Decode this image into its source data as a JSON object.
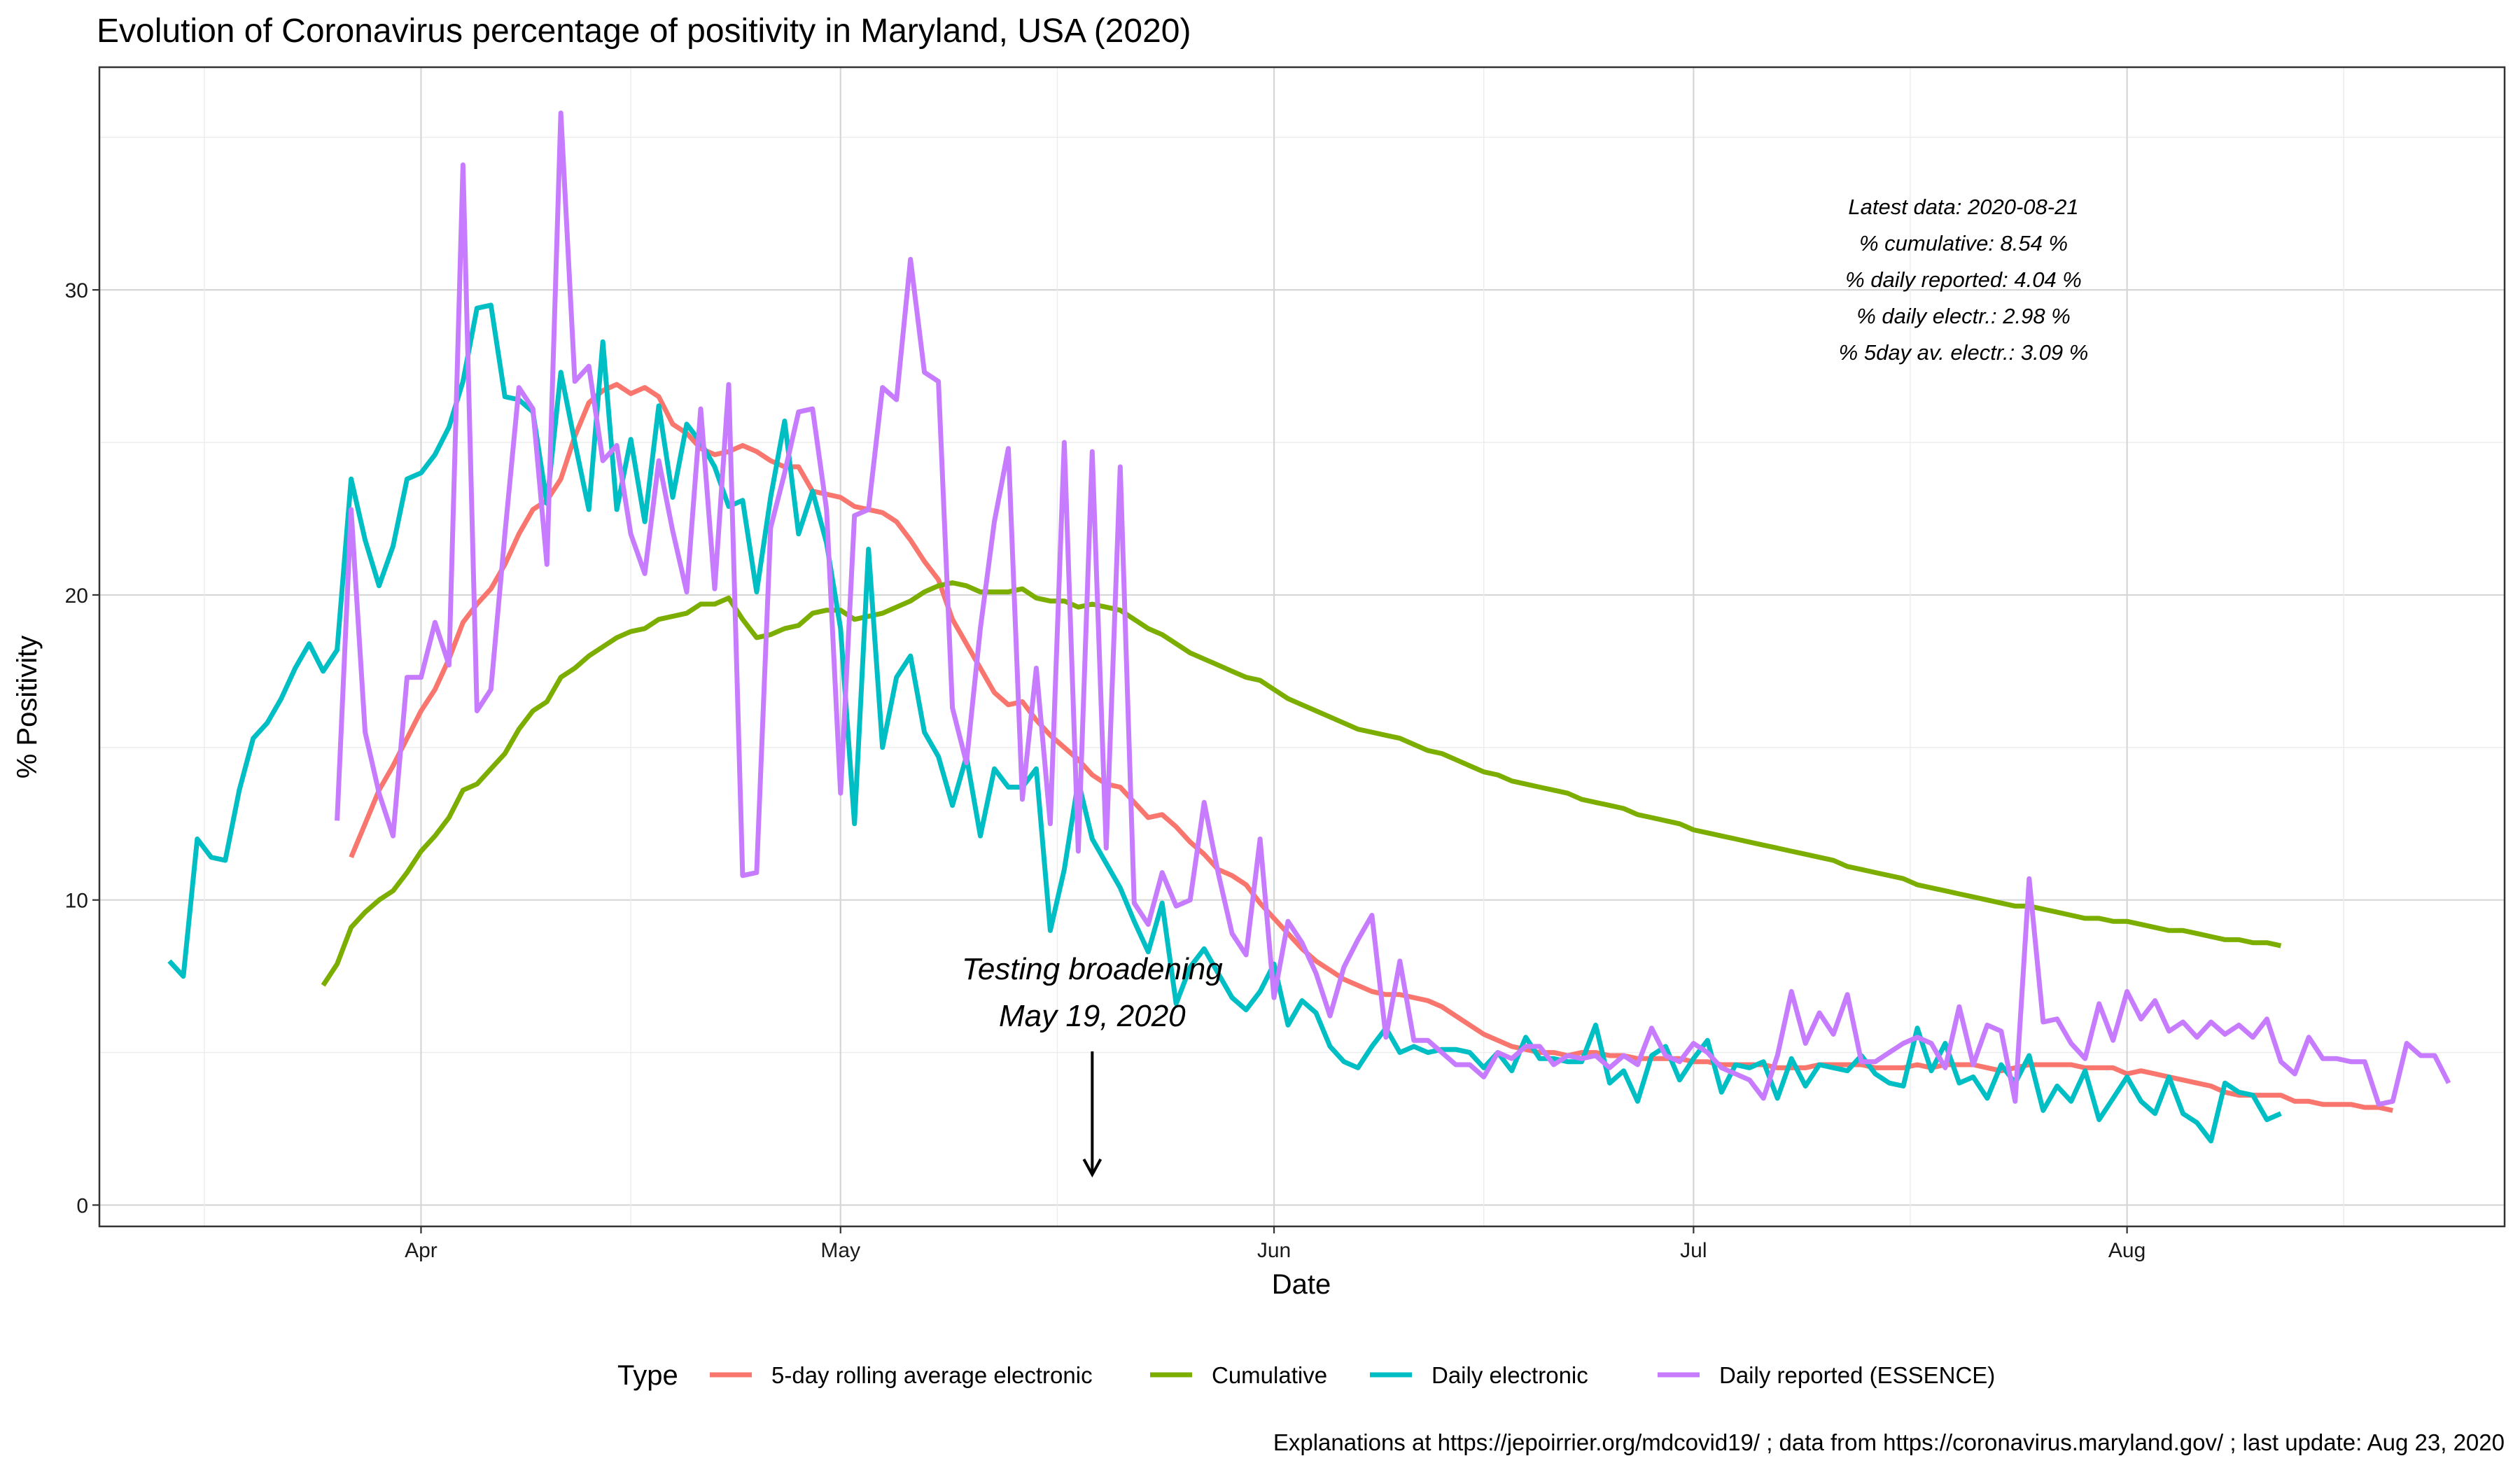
{
  "title": "Evolution of Coronavirus percentage of positivity in Maryland, USA (2020)",
  "caption": "Explanations at https://jepoirrier.org/mdcovid19/ ; data from https://coronavirus.maryland.gov/ ; last update: Aug 23, 2020",
  "latest_note": [
    "Latest data: 2020-08-21",
    "% cumulative: 8.54 %",
    "% daily reported: 4.04 %",
    "% daily electr.: 2.98 %",
    "% 5day av. electr.: 3.09 %"
  ],
  "annotation": {
    "lines": [
      "Testing broadening",
      "May 19, 2020"
    ],
    "date": "2020-05-19"
  },
  "chart_data": {
    "type": "line",
    "title": "Evolution of Coronavirus percentage of positivity in Maryland, USA (2020)",
    "xlabel": "Date",
    "ylabel": "% Positivity",
    "x_start_date": "2020-03-14",
    "x_end_date": "2020-08-21",
    "xlim": [
      "2020-03-09",
      "2020-08-28"
    ],
    "ylim": [
      -0.7,
      37.3
    ],
    "x_ticks": [
      {
        "date": "2020-04-01",
        "label": "Apr"
      },
      {
        "date": "2020-05-01",
        "label": "May"
      },
      {
        "date": "2020-06-01",
        "label": "Jun"
      },
      {
        "date": "2020-07-01",
        "label": "Jul"
      },
      {
        "date": "2020-08-01",
        "label": "Aug"
      }
    ],
    "y_ticks": [
      0,
      10,
      20,
      30
    ],
    "grid": true,
    "legend_position": "bottom",
    "legend_title": "Type",
    "series": [
      {
        "name": "5-day rolling average electronic",
        "color": "#F8766D",
        "start_date": "2020-03-27",
        "values": [
          11.4,
          12.5,
          13.6,
          14.4,
          15.3,
          16.2,
          16.9,
          17.9,
          19.1,
          19.7,
          20.2,
          21.0,
          22.0,
          22.8,
          23.1,
          23.8,
          25.2,
          26.3,
          26.7,
          26.9,
          26.6,
          26.8,
          26.5,
          25.6,
          25.3,
          24.8,
          24.6,
          24.7,
          24.9,
          24.7,
          24.4,
          24.2,
          24.2,
          23.4,
          23.3,
          23.2,
          22.9,
          22.8,
          22.7,
          22.4,
          21.8,
          21.1,
          20.5,
          19.2,
          18.4,
          17.6,
          16.8,
          16.4,
          16.5,
          15.9,
          15.4,
          15.0,
          14.6,
          14.1,
          13.8,
          13.7,
          13.2,
          12.7,
          12.8,
          12.4,
          11.9,
          11.5,
          11.0,
          10.8,
          10.5,
          9.9,
          9.4,
          8.9,
          8.4,
          8.0,
          7.7,
          7.4,
          7.2,
          7.0,
          6.9,
          6.9,
          6.8,
          6.7,
          6.5,
          6.2,
          5.9,
          5.6,
          5.4,
          5.2,
          5.1,
          5.0,
          5.0,
          4.9,
          5.0,
          5.0,
          4.9,
          4.9,
          4.8,
          4.8,
          4.8,
          4.8,
          4.7,
          4.7,
          4.6,
          4.6,
          4.6,
          4.6,
          4.5,
          4.5,
          4.5,
          4.6,
          4.6,
          4.6,
          4.6,
          4.5,
          4.5,
          4.5,
          4.6,
          4.5,
          4.6,
          4.6,
          4.6,
          4.5,
          4.4,
          4.5,
          4.6,
          4.6,
          4.6,
          4.6,
          4.5,
          4.5,
          4.5,
          4.3,
          4.4,
          4.3,
          4.2,
          4.1,
          4.0,
          3.9,
          3.7,
          3.6,
          3.6,
          3.6,
          3.6,
          3.4,
          3.4,
          3.3,
          3.3,
          3.3,
          3.2,
          3.2,
          3.1
        ]
      },
      {
        "name": "Cumulative",
        "color": "#7CAE00",
        "start_date": "2020-03-25",
        "values": [
          7.2,
          7.9,
          9.1,
          9.6,
          10.0,
          10.3,
          10.9,
          11.6,
          12.1,
          12.7,
          13.6,
          13.8,
          14.3,
          14.8,
          15.6,
          16.2,
          16.5,
          17.3,
          17.6,
          18.0,
          18.3,
          18.6,
          18.8,
          18.9,
          19.2,
          19.3,
          19.4,
          19.7,
          19.7,
          19.9,
          19.2,
          18.6,
          18.7,
          18.9,
          19.0,
          19.4,
          19.5,
          19.5,
          19.2,
          19.3,
          19.4,
          19.6,
          19.8,
          20.1,
          20.3,
          20.4,
          20.3,
          20.1,
          20.1,
          20.1,
          20.2,
          19.9,
          19.8,
          19.8,
          19.6,
          19.7,
          19.6,
          19.5,
          19.2,
          18.9,
          18.7,
          18.4,
          18.1,
          17.9,
          17.7,
          17.5,
          17.3,
          17.2,
          16.9,
          16.6,
          16.4,
          16.2,
          16.0,
          15.8,
          15.6,
          15.5,
          15.4,
          15.3,
          15.1,
          14.9,
          14.8,
          14.6,
          14.4,
          14.2,
          14.1,
          13.9,
          13.8,
          13.7,
          13.6,
          13.5,
          13.3,
          13.2,
          13.1,
          13.0,
          12.8,
          12.7,
          12.6,
          12.5,
          12.3,
          12.2,
          12.1,
          12.0,
          11.9,
          11.8,
          11.7,
          11.6,
          11.5,
          11.4,
          11.3,
          11.1,
          11.0,
          10.9,
          10.8,
          10.7,
          10.5,
          10.4,
          10.3,
          10.2,
          10.1,
          10.0,
          9.9,
          9.8,
          9.8,
          9.7,
          9.6,
          9.5,
          9.4,
          9.4,
          9.3,
          9.3,
          9.2,
          9.1,
          9.0,
          9.0,
          8.9,
          8.8,
          8.7,
          8.7,
          8.6,
          8.6,
          8.5
        ]
      },
      {
        "name": "Daily electronic",
        "color": "#00BFC4",
        "start_date": "2020-03-14",
        "values": [
          8.0,
          7.5,
          12.0,
          11.4,
          11.3,
          13.6,
          15.3,
          15.8,
          16.6,
          17.6,
          18.4,
          17.5,
          18.2,
          23.8,
          21.8,
          20.3,
          21.6,
          23.8,
          24.0,
          24.6,
          25.5,
          27.0,
          29.4,
          29.5,
          26.5,
          26.4,
          26.0,
          23.0,
          27.3,
          25.0,
          22.8,
          28.3,
          22.8,
          25.1,
          22.4,
          26.2,
          23.2,
          25.6,
          25.0,
          24.2,
          22.9,
          23.1,
          20.1,
          23.2,
          25.7,
          22.0,
          23.4,
          21.7,
          18.9,
          12.5,
          21.5,
          15.0,
          17.3,
          18.0,
          15.5,
          14.7,
          13.1,
          14.7,
          12.1,
          14.3,
          13.7,
          13.7,
          14.3,
          9.0,
          11.0,
          13.9,
          12.0,
          11.2,
          10.4,
          9.3,
          8.3,
          9.9,
          6.6,
          7.8,
          8.4,
          7.6,
          6.8,
          6.4,
          7.0,
          7.9,
          5.9,
          6.7,
          6.3,
          5.2,
          4.7,
          4.5,
          5.2,
          5.8,
          5.0,
          5.2,
          5.0,
          5.1,
          5.1,
          5.0,
          4.5,
          5.0,
          4.4,
          5.5,
          4.8,
          4.8,
          4.7,
          4.7,
          5.9,
          4.0,
          4.4,
          3.4,
          4.9,
          5.2,
          4.1,
          4.8,
          5.4,
          3.7,
          4.6,
          4.5,
          4.7,
          3.5,
          4.8,
          3.9,
          4.6,
          4.5,
          4.4,
          4.9,
          4.3,
          4.0,
          3.9,
          5.8,
          4.4,
          5.3,
          4.0,
          4.2,
          3.5,
          4.6,
          4.0,
          4.9,
          3.1,
          3.9,
          3.4,
          4.4,
          2.8,
          3.5,
          4.2,
          3.4,
          3.0,
          4.2,
          3.0,
          2.7,
          2.1,
          4.0,
          3.7,
          3.6,
          2.8,
          3.0
        ]
      },
      {
        "name": "Daily reported (ESSENCE)",
        "color": "#C77CFF",
        "start_date": "2020-03-26",
        "values": [
          12.6,
          22.8,
          15.5,
          13.5,
          12.1,
          17.3,
          17.3,
          19.1,
          17.7,
          34.1,
          16.2,
          16.9,
          22.0,
          26.8,
          26.1,
          21.0,
          35.8,
          27.0,
          27.5,
          24.4,
          24.9,
          22.0,
          20.7,
          24.4,
          22.1,
          20.1,
          26.1,
          20.2,
          26.9,
          10.8,
          10.9,
          22.2,
          24.0,
          26.0,
          26.1,
          22.8,
          13.5,
          22.6,
          22.8,
          26.8,
          26.4,
          31.0,
          27.3,
          27.0,
          16.3,
          14.5,
          18.9,
          22.4,
          24.8,
          13.3,
          17.6,
          12.5,
          25.0,
          11.6,
          24.7,
          11.7,
          24.2,
          9.9,
          9.2,
          10.9,
          9.8,
          10.0,
          13.2,
          10.9,
          8.9,
          8.2,
          12.0,
          6.8,
          9.3,
          8.6,
          7.6,
          6.2,
          7.8,
          8.7,
          9.5,
          5.5,
          8.0,
          5.4,
          5.4,
          5.0,
          4.6,
          4.6,
          4.2,
          5.0,
          4.8,
          5.2,
          5.2,
          4.6,
          4.9,
          4.8,
          4.9,
          4.5,
          4.9,
          4.6,
          5.8,
          4.9,
          4.7,
          5.3,
          5.0,
          4.5,
          4.3,
          4.1,
          3.5,
          4.9,
          7.0,
          5.3,
          6.3,
          5.6,
          6.9,
          4.7,
          4.7,
          5.0,
          5.3,
          5.5,
          5.3,
          4.5,
          6.5,
          4.6,
          5.9,
          5.7,
          3.4,
          10.7,
          6.0,
          6.1,
          5.3,
          4.8,
          6.6,
          5.4,
          7.0,
          6.1,
          6.7,
          5.7,
          6.0,
          5.5,
          6.0,
          5.6,
          5.9,
          5.5,
          6.1,
          4.7,
          4.3,
          5.5,
          4.8,
          4.8,
          4.7,
          4.7,
          3.3,
          3.4,
          5.3,
          4.9,
          4.9,
          4.0
        ]
      }
    ]
  }
}
